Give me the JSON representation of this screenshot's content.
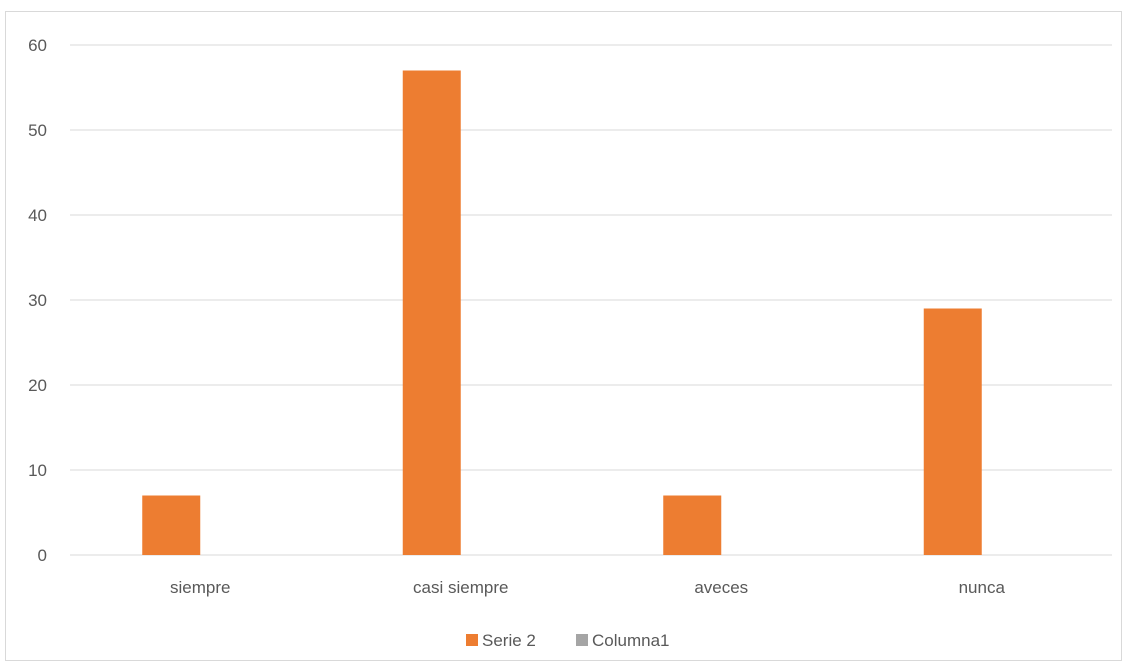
{
  "chart_data": {
    "type": "bar",
    "title": "",
    "xlabel": "",
    "ylabel": "",
    "categories": [
      "siempre",
      "casi siempre",
      "aveces",
      "nunca"
    ],
    "series": [
      {
        "name": "Serie 2",
        "values": [
          7,
          57,
          7,
          29
        ],
        "color": "#ED7D31"
      },
      {
        "name": "Columna1",
        "values": [
          0,
          0,
          0,
          0
        ],
        "color": "#A5A5A5"
      }
    ],
    "ylim": [
      0,
      60
    ],
    "yticks": [
      0,
      10,
      20,
      30,
      40,
      50,
      60
    ],
    "grid": true,
    "legend": "bottom"
  },
  "colors": {
    "gridline": "#d9d9d9",
    "text": "#595959"
  }
}
